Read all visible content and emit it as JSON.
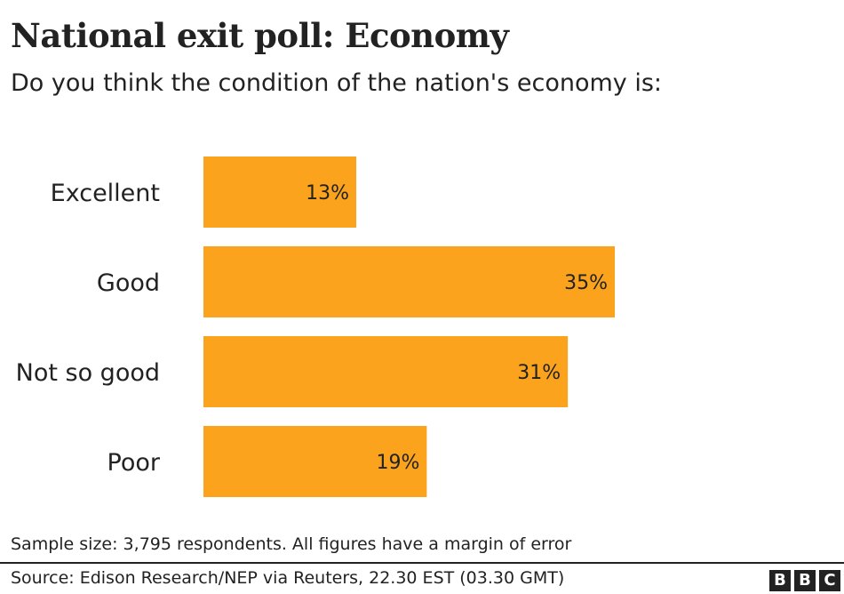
{
  "header": {
    "title": "National exit poll: Economy",
    "subtitle": "Do you think the condition of the nation's economy is:"
  },
  "chart_data": {
    "type": "bar",
    "orientation": "horizontal",
    "categories": [
      "Excellent",
      "Good",
      "Not so good",
      "Poor"
    ],
    "values": [
      13,
      35,
      31,
      19
    ],
    "value_labels": [
      "13%",
      "35%",
      "31%",
      "19%"
    ],
    "unit": "%",
    "bar_color": "#fba31c",
    "grid": false
  },
  "footer": {
    "note": "Sample size: 3,795 respondents. All figures have a margin of error",
    "source": "Source: Edison Research/NEP via Reuters, 22.30 EST (03.30 GMT)",
    "logo_letters": [
      "B",
      "B",
      "C"
    ]
  }
}
